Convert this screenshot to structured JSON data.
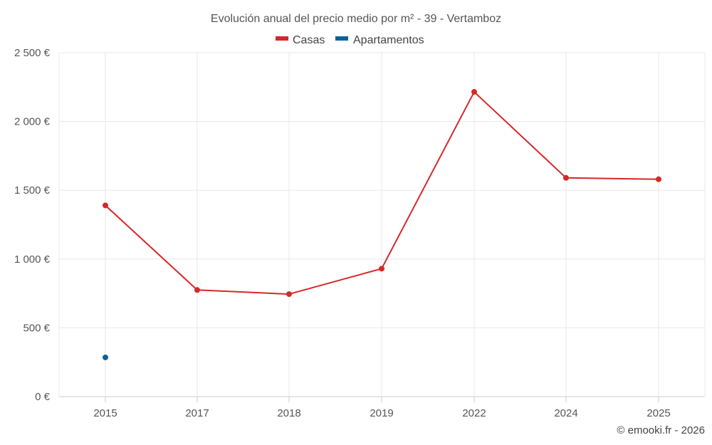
{
  "chart_data": {
    "type": "line",
    "title": "Evolución anual del precio medio por m² - 39 - Vertamboz",
    "categories": [
      "2015",
      "2017",
      "2018",
      "2019",
      "2022",
      "2024",
      "2025"
    ],
    "series": [
      {
        "name": "Casas",
        "color": "#d62728",
        "values": [
          1390,
          775,
          745,
          930,
          2215,
          1590,
          1580
        ]
      },
      {
        "name": "Apartamentos",
        "color": "#08639c",
        "values": [
          285,
          null,
          null,
          null,
          null,
          null,
          null
        ]
      }
    ],
    "ylim": [
      0,
      2500
    ],
    "yticks": [
      0,
      500,
      1000,
      1500,
      2000,
      2500
    ],
    "ytick_labels": [
      "0 €",
      "500 €",
      "1 000 €",
      "1 500 €",
      "2 000 €",
      "2 500 €"
    ],
    "xlabel": "",
    "ylabel": "",
    "legend": "top-center",
    "grid": true
  },
  "credit": "© emooki.fr - 2026"
}
